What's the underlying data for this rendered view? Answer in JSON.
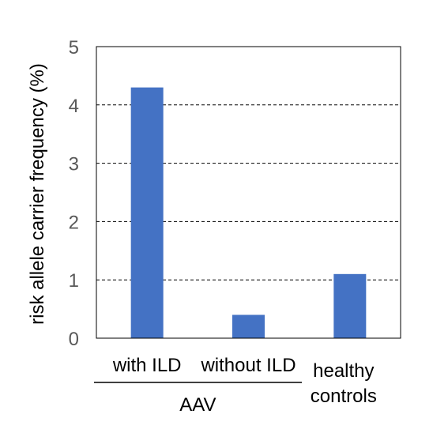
{
  "chart_data": {
    "type": "bar",
    "categories": [
      "with ILD",
      "without ILD",
      "healthy controls"
    ],
    "category_lines": [
      [
        "with ILD"
      ],
      [
        "without ILD"
      ],
      [
        "healthy",
        "controls"
      ]
    ],
    "values": [
      4.3,
      0.4,
      1.1
    ],
    "ylabel": "risk allele carrier frequency (%)",
    "ylim": [
      0,
      5
    ],
    "yticks": [
      "0",
      "1",
      "2",
      "3",
      "4",
      "5"
    ],
    "group_label": "AAV",
    "grid": "horizontal dashed",
    "colors": {
      "bar": "#4472C4",
      "tick_text": "#595959",
      "grid": "#000000"
    }
  }
}
